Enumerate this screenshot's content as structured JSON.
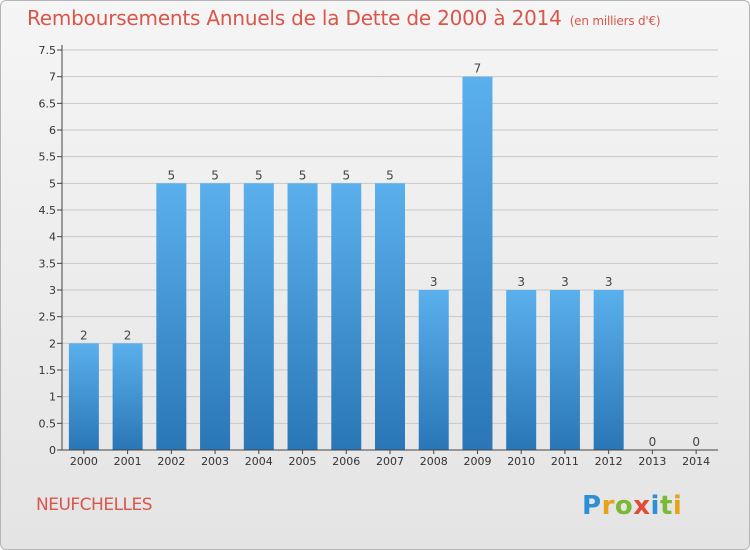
{
  "title": "Remboursements Annuels de la Dette de 2000 à 2014",
  "unit_note": "(en milliers d'€)",
  "commune": "NEUFCHELLES",
  "logo_text": "Proxiti",
  "colors": {
    "bar_top": "#5ab0ec",
    "bar_bottom": "#2a76b6",
    "title": "#d9564b",
    "axis": "#444444",
    "grid": "#c8c8c8"
  },
  "chart_data": {
    "type": "bar",
    "categories": [
      "2000",
      "2001",
      "2002",
      "2003",
      "2004",
      "2005",
      "2006",
      "2007",
      "2008",
      "2009",
      "2010",
      "2011",
      "2012",
      "2013",
      "2014"
    ],
    "values": [
      2,
      2,
      5,
      5,
      5,
      5,
      5,
      5,
      3,
      7,
      3,
      3,
      3,
      0,
      0
    ],
    "data_labels": [
      "2",
      "2",
      "5",
      "5",
      "5",
      "5",
      "5",
      "5",
      "3",
      "7",
      "3",
      "3",
      "3",
      "0",
      "0"
    ],
    "ylim": [
      0,
      7.5
    ],
    "yticks": [
      "0",
      "0.5",
      "1",
      "1.5",
      "2",
      "2.5",
      "3",
      "3.5",
      "4",
      "4.5",
      "5",
      "5.5",
      "6",
      "6.5",
      "7",
      "7.5"
    ],
    "grid": true
  }
}
